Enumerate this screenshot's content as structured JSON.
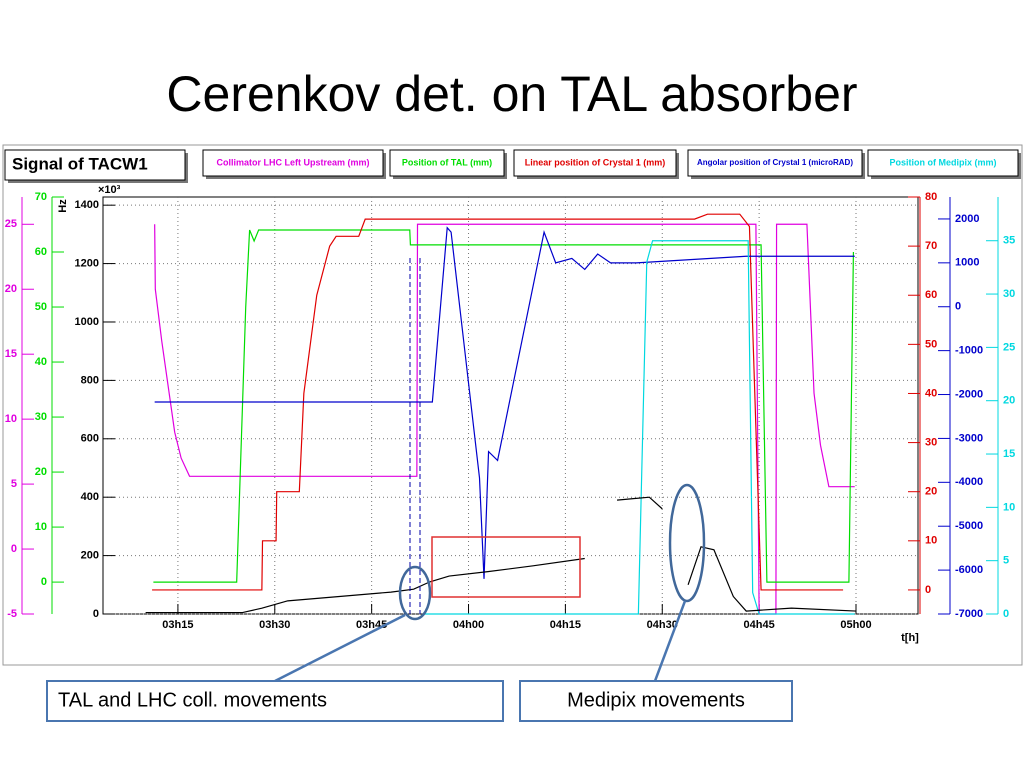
{
  "slide_title": "Cerenkov det. on TAL absorber",
  "chart_data": {
    "type": "line",
    "title": "Signal of TACW1",
    "xlabel": "t[h]",
    "ylabel": "Hz",
    "y_multiplier": "×10³",
    "xlim": [
      183.4,
      309.6
    ],
    "xticks": [
      {
        "value": 195,
        "label": "03h15"
      },
      {
        "value": 210,
        "label": "03h30"
      },
      {
        "value": 225,
        "label": "03h45"
      },
      {
        "value": 240,
        "label": "04h00"
      },
      {
        "value": 255,
        "label": "04h15"
      },
      {
        "value": 270,
        "label": "04h30"
      },
      {
        "value": 285,
        "label": "04h45"
      },
      {
        "value": 300,
        "label": "05h00"
      }
    ],
    "ylim": [
      0,
      1428
    ],
    "yticks": [
      0,
      200,
      400,
      600,
      800,
      1000,
      1200,
      1400
    ],
    "grid": true,
    "color": "#000000",
    "extra_axes": [
      {
        "color": "#e000e0",
        "lim": [
          -5,
          27.1
        ],
        "ticks": [
          -5,
          0,
          5,
          10,
          15,
          20,
          25
        ]
      },
      {
        "color": "#00dd00",
        "lim": [
          -5.8,
          70
        ],
        "ticks": [
          0,
          10,
          20,
          30,
          40,
          50,
          60,
          70
        ]
      },
      {
        "color": "#e00000",
        "lim": [
          -4.9,
          80
        ],
        "ticks": [
          0,
          10,
          20,
          30,
          40,
          50,
          60,
          70,
          80
        ]
      },
      {
        "color": "#0000cc",
        "lim": [
          -7000,
          2500
        ],
        "ticks": [
          -7000,
          -6000,
          -5000,
          -4000,
          -3000,
          -2000,
          -1000,
          0,
          1000,
          2000
        ]
      },
      {
        "color": "#00d8e0",
        "lim": [
          0,
          39.1
        ],
        "ticks": [
          0,
          5,
          10,
          15,
          20,
          25,
          30,
          35
        ]
      }
    ],
    "signal": {
      "color": "#000000",
      "x": [
        190,
        205,
        208,
        212,
        220,
        228,
        231.5,
        234,
        237,
        243,
        250,
        258,
        262,
        263,
        268,
        270,
        272,
        274,
        276,
        278,
        281,
        283,
        290,
        300
      ],
      "values": [
        5,
        5,
        20,
        45,
        60,
        75,
        85,
        110,
        130,
        145,
        165,
        190,
        null,
        390,
        400,
        360,
        null,
        100,
        230,
        220,
        60,
        10,
        20,
        10
      ]
    },
    "series": [
      {
        "name": "Collimator LHC Left Upstream (mm)",
        "color": "#e000e0",
        "axis": 0,
        "x": [
          191.4,
          191.5,
          192.5,
          194.5,
          195.5,
          196.8,
          232,
          232.1,
          284.5,
          285,
          287.6,
          287.7,
          292.4,
          293.5,
          294.5,
          295.8,
          299.8
        ],
        "values": [
          25,
          20,
          16,
          9,
          7,
          5.6,
          5.6,
          25,
          25,
          -5,
          -5,
          25,
          25,
          12,
          8,
          4.8,
          4.8
        ]
      },
      {
        "name": "Position of TAL (mm)",
        "color": "#00dd00",
        "axis": 1,
        "x": [
          191.2,
          204.1,
          205.5,
          206.1,
          206.8,
          207.5,
          230.9,
          231,
          285.3,
          286.2,
          298.9,
          299.6
        ],
        "values": [
          0,
          0,
          50,
          64,
          62,
          64,
          64,
          61.3,
          61.3,
          0,
          0,
          60
        ]
      },
      {
        "name": "Linear position of Crystal 1 (mm)",
        "color": "#e00000",
        "axis": 2,
        "x": [
          191,
          208,
          208.1,
          210.2,
          210.3,
          213.8,
          214.5,
          216.5,
          218.5,
          219.5,
          223,
          224,
          275,
          277,
          282,
          283.5,
          285.3,
          298
        ],
        "values": [
          0,
          0,
          10,
          10,
          20,
          20,
          40,
          60,
          70,
          72,
          72,
          75.5,
          75.5,
          76.5,
          76.5,
          74,
          0,
          0
        ]
      },
      {
        "name": "Angolar position of Crystal 1 (microRAD)",
        "color": "#0000cc",
        "axis": 3,
        "x": [
          191.4,
          234.4,
          236.7,
          237.3,
          241.7,
          242.4,
          243.1,
          244.5,
          251.7,
          253.5,
          256,
          258,
          260,
          262,
          266,
          283,
          299.8
        ],
        "values": [
          -2170,
          -2170,
          1800,
          1700,
          -3900,
          -6200,
          -3300,
          -3500,
          1700,
          1000,
          1100,
          850,
          1200,
          1000,
          1000,
          1150,
          1150
        ]
      },
      {
        "name": "Position of Medipix (mm)",
        "color": "#00d8e0",
        "axis": 4,
        "x": [
          233,
          266.3,
          267.6,
          268.5,
          283.3,
          284,
          285,
          299.8
        ],
        "values": [
          0,
          0,
          33,
          35,
          35,
          2,
          0,
          0
        ]
      }
    ]
  },
  "annotations": [
    {
      "text": "TAL and LHC coll. movements"
    },
    {
      "text": "Medipix movements"
    }
  ]
}
